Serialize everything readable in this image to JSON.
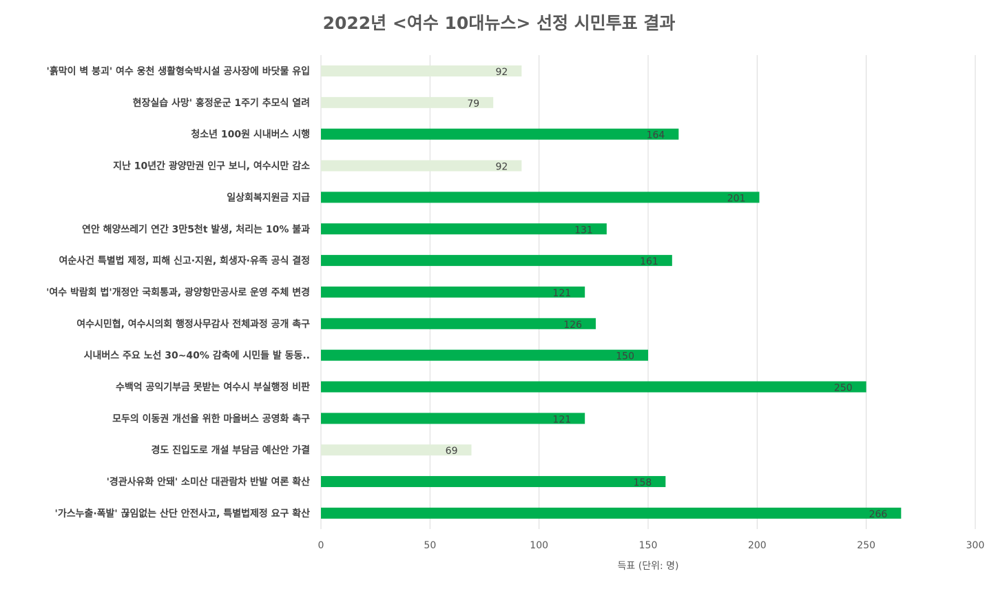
{
  "chart_data": {
    "type": "bar",
    "orientation": "horizontal",
    "title": "2022년 <여수 10대뉴스> 선정 시민투표 결과",
    "xlabel": "득표 (단위: 명)",
    "ylabel": "",
    "xlim": [
      0,
      300
    ],
    "x_ticks": [
      0,
      50,
      100,
      150,
      200,
      250,
      300
    ],
    "grid": "vertical",
    "legend": "none",
    "categories": [
      "'흙막이 벽 붕괴' 여수 웅천 생활형숙박시설 공사장에 바닷물 유입",
      "현장실습 사망' 홍정운군 1주기 추모식 열려",
      "청소년 100원 시내버스 시행",
      "지난 10년간 광양만권 인구 보니, 여수시만 감소",
      "일상회복지원금 지급",
      "연안 해양쓰레기 연간 3만5천t 발생, 처리는 10% 불과",
      "여순사건 특별법 제정, 피해 신고·지원, 희생자·유족 공식 결정",
      "'여수 박람회 법'개정안 국회통과, 광양항만공사로 운영 주체 변경",
      "여수시민협, 여수시의회 행정사무감사 전체과정 공개 촉구",
      "시내버스 주요 노선 30~40% 감축에 시민들 발 동동..",
      "수백억 공익기부금 못받는 여수시 부실행정 비판",
      "모두의 이동권 개선을 위한 마을버스 공영화 촉구",
      "경도 진입도로 개설 부담금 예산안 가결",
      "'경관사유화 안돼' 소미산 대관람차 반발 여론 확산",
      "'가스누출·폭발' 끊임없는 산단 안전사고, 특별법제정 요구 확산"
    ],
    "values": [
      92,
      79,
      164,
      92,
      201,
      131,
      161,
      121,
      126,
      150,
      250,
      121,
      69,
      158,
      266
    ],
    "highlighted": [
      false,
      false,
      true,
      false,
      true,
      true,
      true,
      true,
      true,
      true,
      true,
      true,
      false,
      true,
      true
    ],
    "colors": {
      "highlight": "#00b050",
      "muted": "#e2efda",
      "grid": "#d9d9d9",
      "label": "#404040",
      "axis_text": "#595959",
      "title": "#595959"
    }
  }
}
